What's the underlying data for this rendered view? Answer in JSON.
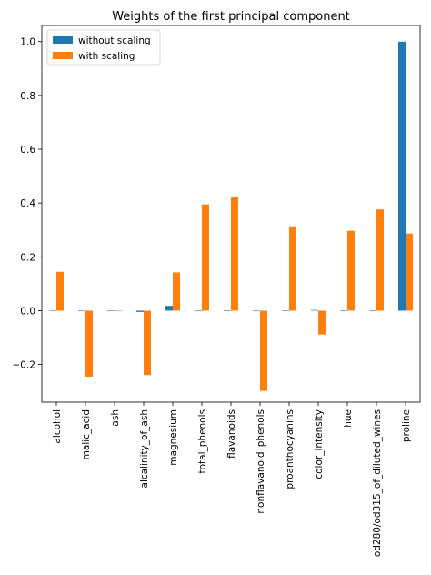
{
  "chart_data": {
    "type": "bar",
    "title": "Weights of the first principal component",
    "xlabel": "",
    "ylabel": "",
    "categories": [
      "alcohol",
      "malic_acid",
      "ash",
      "alcalinity_of_ash",
      "magnesium",
      "total_phenols",
      "flavanoids",
      "nonflavanoid_phenols",
      "proanthocyanins",
      "color_intensity",
      "hue",
      "od280/od315_of_diluted_wines",
      "proline"
    ],
    "series": [
      {
        "name": "without scaling",
        "color": "#1f77b4",
        "values": [
          0.0017,
          -0.0007,
          0.0002,
          -0.0047,
          0.0179,
          0.001,
          0.0016,
          -0.0001,
          0.0006,
          0.0023,
          0.0002,
          0.0007,
          0.9998
        ]
      },
      {
        "name": "with scaling",
        "color": "#ff7f0e",
        "values": [
          0.1443,
          -0.2452,
          -0.0021,
          -0.2393,
          0.142,
          0.3947,
          0.4229,
          -0.2985,
          0.3134,
          -0.0886,
          0.2967,
          0.3762,
          0.2868
        ]
      }
    ],
    "ylim": [
      -0.34,
      1.06
    ],
    "yticks": [
      -0.2,
      0.0,
      0.2,
      0.4,
      0.6,
      0.8,
      1.0
    ],
    "ytick_labels": [
      "−0.2",
      "0.0",
      "0.2",
      "0.4",
      "0.6",
      "0.8",
      "1.0"
    ],
    "legend_position": "upper-left",
    "grid": false
  }
}
